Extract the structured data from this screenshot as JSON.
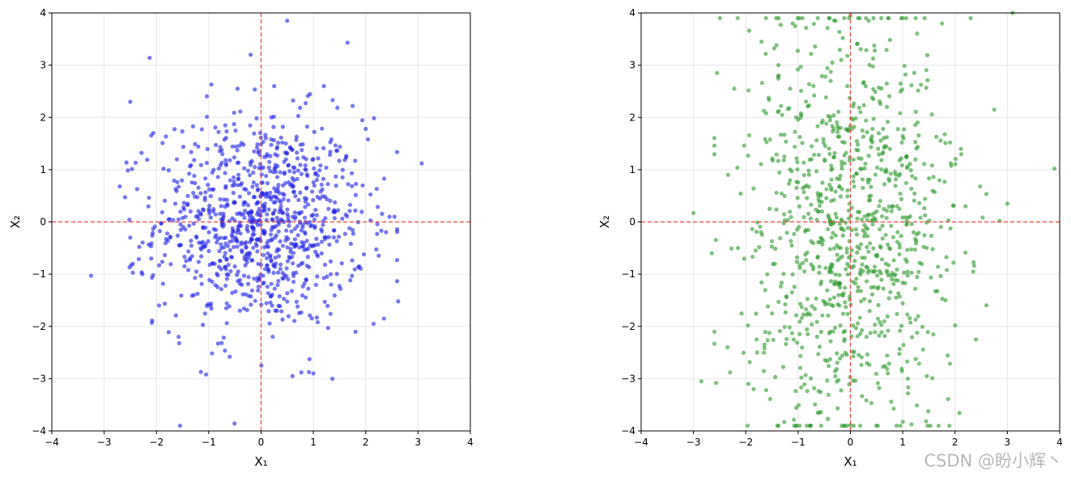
{
  "watermark": "CSDN @盼小辉丶",
  "colors": {
    "reference_line": "#e8473f",
    "grid": "#e6e6e6",
    "frame": "#000000"
  },
  "chart_data": [
    {
      "type": "scatter",
      "xlabel": "X₁",
      "ylabel": "X₂",
      "xlim": [
        -4,
        4
      ],
      "ylim": [
        -4,
        4
      ],
      "xticks": [
        -4,
        -3,
        -2,
        -1,
        0,
        1,
        2,
        3,
        4
      ],
      "yticks": [
        -4,
        -3,
        -2,
        -1,
        0,
        1,
        2,
        3,
        4
      ],
      "grid": true,
      "reference_lines": {
        "x": 0,
        "y": 0,
        "style": "dashed"
      },
      "series": [
        {
          "color": "#1f1fe8",
          "alpha": 0.6,
          "distribution": "standard normal, independent X₁ and X₂",
          "n": 1000,
          "points": [
            [
              -3.25,
              -1.03
            ],
            [
              3.07,
              1.12
            ],
            [
              -2.13,
              3.14
            ],
            [
              -0.2,
              3.2
            ],
            [
              0.5,
              3.85
            ],
            [
              -2.5,
              2.3
            ],
            [
              2.62,
              -1.52
            ],
            [
              -2.7,
              0.68
            ],
            [
              2.55,
              0.1
            ],
            [
              -2.1,
              -0.7
            ],
            [
              -1.15,
              -2.87
            ],
            [
              -1.05,
              -2.92
            ],
            [
              0.6,
              -2.95
            ],
            [
              0.77,
              -2.88
            ],
            [
              1.0,
              -2.9
            ],
            [
              -0.6,
              -2.58
            ],
            [
              2.15,
              -1.95
            ],
            [
              2.35,
              -1.85
            ],
            [
              1.75,
              2.22
            ],
            [
              2.0,
              1.78
            ],
            [
              -2.06,
              1.7
            ],
            [
              -1.3,
              1.83
            ],
            [
              -0.95,
              2.63
            ],
            [
              1.2,
              2.6
            ],
            [
              -0.45,
              2.55
            ],
            [
              0.25,
              2.6
            ],
            [
              -2.5,
              -0.3
            ],
            [
              -2.45,
              -0.8
            ],
            [
              -2.27,
              -1.0
            ],
            [
              -1.95,
              -1.6
            ]
          ]
        }
      ]
    },
    {
      "type": "scatter",
      "xlabel": "X₁",
      "ylabel": "X₂",
      "xlim": [
        -4,
        4
      ],
      "ylim": [
        -4,
        4
      ],
      "xticks": [
        -4,
        -3,
        -2,
        -1,
        0,
        1,
        2,
        3,
        4
      ],
      "yticks": [
        -4,
        -3,
        -2,
        -1,
        0,
        1,
        2,
        3,
        4
      ],
      "grid": true,
      "reference_lines": {
        "x": 0,
        "y": 0,
        "style": "dashed"
      },
      "series": [
        {
          "color": "#2e9a2e",
          "alpha": 0.6,
          "distribution": "standard normal X₁, X₂ with wider vertical spread",
          "n": 1000,
          "points": [
            [
              3.9,
              1.02
            ],
            [
              -3.0,
              0.17
            ],
            [
              -2.85,
              -3.05
            ],
            [
              3.1,
              4.0
            ],
            [
              -2.55,
              2.85
            ],
            [
              2.85,
              0.02
            ],
            [
              3.0,
              0.35
            ],
            [
              2.4,
              -2.25
            ],
            [
              2.75,
              2.15
            ],
            [
              -2.65,
              -0.6
            ],
            [
              -2.35,
              -2.4
            ],
            [
              -2.3,
              -2.88
            ],
            [
              -1.95,
              -3.1
            ],
            [
              1.75,
              3.8
            ],
            [
              0.0,
              3.95
            ],
            [
              -1.85,
              -3.2
            ],
            [
              2.2,
              0.3
            ],
            [
              -2.22,
              2.55
            ],
            [
              2.48,
              0.68
            ],
            [
              -1.7,
              3.45
            ]
          ]
        }
      ]
    }
  ]
}
